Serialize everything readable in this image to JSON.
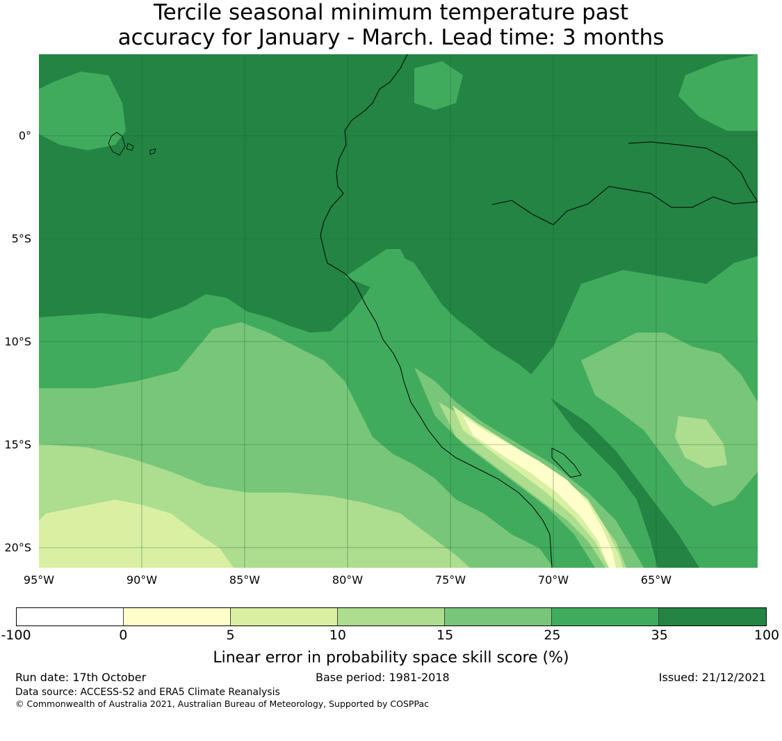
{
  "title": {
    "line1": "Tercile seasonal minimum temperature past",
    "line2": "accuracy for January - March. Lead time: 3 months"
  },
  "map": {
    "lat_labels": [
      "0°",
      "5°S",
      "10°S",
      "15°S",
      "20°S"
    ],
    "lon_labels": [
      "95°W",
      "90°W",
      "85°W",
      "80°W",
      "75°W",
      "70°W",
      "65°W"
    ],
    "colors": {
      "c100_35": "#238443",
      "c35_25": "#41ab5d",
      "c25_15": "#78c679",
      "c15_10": "#addd8e",
      "c10_5": "#d9f0a3",
      "c5_0": "#ffffcc",
      "neg": "#ffffff"
    }
  },
  "colorbar": {
    "ticks": [
      "-100",
      "0",
      "5",
      "10",
      "15",
      "25",
      "35",
      "100"
    ],
    "colors": [
      "#ffffff",
      "#ffffcc",
      "#d9f0a3",
      "#addd8e",
      "#78c679",
      "#41ab5d",
      "#238443"
    ],
    "label": "Linear error in probability space skill score (%)"
  },
  "footer": {
    "run_date": "Run date: 17th October",
    "base_period": "Base period: 1981-2018",
    "issued": "Issued: 21/12/2021",
    "data_source": "Data source: ACCESS-S2 and ERA5 Climate Reanalysis",
    "copyright": "© Commonwealth of Australia 2021, Australian Bureau of Meteorology, Supported by COSPPac"
  }
}
